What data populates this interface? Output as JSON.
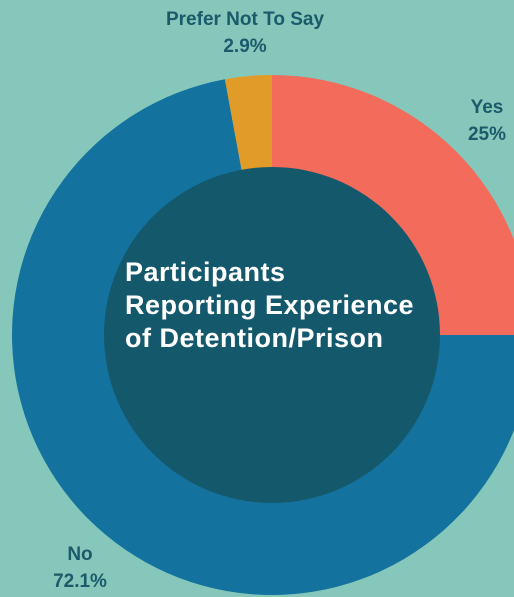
{
  "chart_data": {
    "type": "donut",
    "title": "Participants Reporting Experience of Detention/Prison",
    "categories": [
      "Yes",
      "No",
      "Prefer Not To Say"
    ],
    "values": [
      25,
      72.1,
      2.9
    ],
    "value_labels": [
      "25%",
      "72.1%",
      "2.9%"
    ],
    "colors": [
      "#f26b5b",
      "#13729e",
      "#e09b28"
    ]
  }
}
